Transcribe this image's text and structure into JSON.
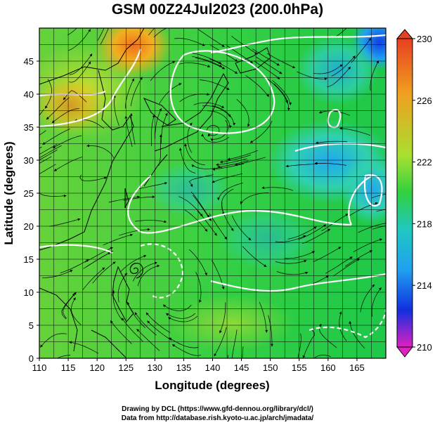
{
  "title": "GSM 00Z24Jul2023 (200.0hPa)",
  "xlabel": "Longitude (degrees)",
  "ylabel": "Latitude  (degrees)",
  "x_ticks": [
    "110",
    "115",
    "120",
    "125",
    "130",
    "135",
    "140",
    "145",
    "150",
    "155",
    "160",
    "165"
  ],
  "y_ticks": [
    "0",
    "5",
    "10",
    "15",
    "20",
    "25",
    "30",
    "35",
    "40",
    "45"
  ],
  "colorbar": {
    "labels": [
      "230",
      "226",
      "222",
      "218",
      "214",
      "210"
    ],
    "colors": {
      "top": "#e84020",
      "upper": "#f0a020",
      "mid_upper": "#a8e030",
      "mid": "#30d040",
      "mid_lower": "#20b0f0",
      "lower": "#1030e0",
      "bottom": "#e020c0"
    }
  },
  "credits": {
    "line1": "Drawing by DCL (https://www.gfd-dennou.org/library/dcl/)",
    "line2": "Data from http://database.rish.kyoto-u.ac.jp/arch/jmadata/"
  },
  "chart_data": {
    "type": "heatmap",
    "title": "GSM 00Z24Jul2023 (200.0hPa)",
    "xlabel": "Longitude (degrees)",
    "ylabel": "Latitude  (degrees)",
    "xlim": [
      110,
      170
    ],
    "ylim": [
      0,
      50
    ],
    "colorbar_range": [
      210,
      230
    ],
    "grid": true,
    "legend": "colorbar right"
  }
}
